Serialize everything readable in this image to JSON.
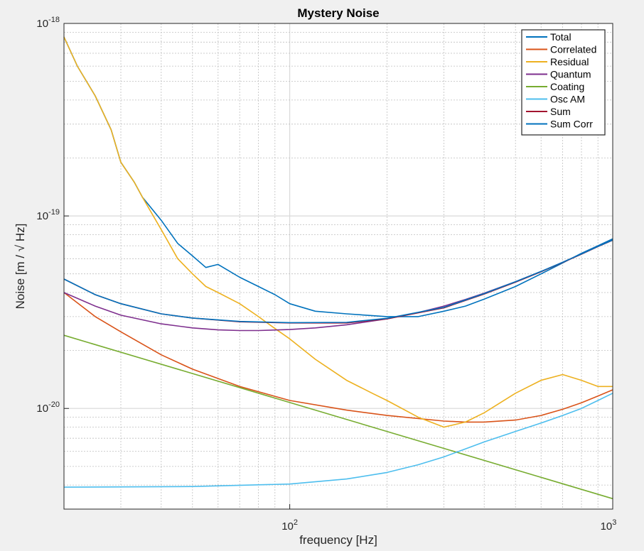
{
  "chart_data": {
    "type": "line",
    "title": "Mystery Noise",
    "xlabel": "frequency [Hz]",
    "ylabel": "Noise [m / √ Hz]",
    "xscale": "log",
    "yscale": "log",
    "xlim": [
      20,
      1000
    ],
    "ylim": [
      3e-21,
      1e-18
    ],
    "grid": true,
    "legend_position": "top-right",
    "x_ticks": [
      {
        "value": 100,
        "base": "10",
        "exp": "2"
      },
      {
        "value": 1000,
        "base": "10",
        "exp": "3"
      }
    ],
    "y_ticks": [
      {
        "value": 1e-20,
        "base": "10",
        "exp": "-20"
      },
      {
        "value": 1e-19,
        "base": "10",
        "exp": "-19"
      },
      {
        "value": 1e-18,
        "base": "10",
        "exp": "-18"
      }
    ],
    "series": [
      {
        "name": "Total",
        "color": "#0072bd",
        "x": [
          20,
          22,
          25,
          28,
          30,
          33,
          35,
          40,
          45,
          50,
          55,
          60,
          70,
          80,
          90,
          100,
          120,
          150,
          200,
          250,
          300,
          350,
          400,
          500,
          600,
          700,
          800,
          900,
          1000
        ],
        "y": [
          8.5e-19,
          6e-19,
          4.2e-19,
          2.8e-19,
          1.9e-19,
          1.5e-19,
          1.25e-19,
          9.5e-20,
          7.2e-20,
          6.2e-20,
          5.4e-20,
          5.6e-20,
          4.8e-20,
          4.3e-20,
          3.9e-20,
          3.5e-20,
          3.2e-20,
          3.1e-20,
          3e-20,
          3e-20,
          3.2e-20,
          3.4e-20,
          3.7e-20,
          4.3e-20,
          5e-20,
          5.7e-20,
          6.4e-20,
          7e-20,
          7.6e-20
        ]
      },
      {
        "name": "Correlated",
        "color": "#d95319",
        "x": [
          20,
          25,
          30,
          40,
          50,
          70,
          100,
          150,
          200,
          300,
          350,
          400,
          500,
          600,
          700,
          800,
          900,
          1000
        ],
        "y": [
          4e-20,
          3e-20,
          2.5e-20,
          1.9e-20,
          1.6e-20,
          1.3e-20,
          1.1e-20,
          9.8e-21,
          9.2e-21,
          8.6e-21,
          8.5e-21,
          8.5e-21,
          8.7e-21,
          9.2e-21,
          9.9e-21,
          1.07e-20,
          1.16e-20,
          1.25e-20
        ]
      },
      {
        "name": "Residual",
        "color": "#edb120",
        "x": [
          20,
          22,
          25,
          28,
          30,
          33,
          35,
          40,
          45,
          50,
          55,
          60,
          70,
          80,
          90,
          100,
          120,
          150,
          180,
          200,
          250,
          300,
          350,
          400,
          500,
          600,
          700,
          800,
          900,
          1000
        ],
        "y": [
          8.5e-19,
          6e-19,
          4.2e-19,
          2.8e-19,
          1.9e-19,
          1.5e-19,
          1.25e-19,
          8.5e-20,
          6e-20,
          5e-20,
          4.3e-20,
          4e-20,
          3.5e-20,
          3e-20,
          2.6e-20,
          2.3e-20,
          1.8e-20,
          1.4e-20,
          1.2e-20,
          1.1e-20,
          9e-21,
          8e-21,
          8.5e-21,
          9.5e-21,
          1.2e-20,
          1.4e-20,
          1.5e-20,
          1.4e-20,
          1.3e-20,
          1.3e-20
        ]
      },
      {
        "name": "Quantum",
        "color": "#7e2f8e",
        "x": [
          20,
          25,
          30,
          40,
          50,
          60,
          70,
          80,
          100,
          120,
          150,
          200,
          250,
          300,
          350,
          400,
          500,
          600,
          700,
          800,
          900,
          1000
        ],
        "y": [
          4e-20,
          3.4e-20,
          3.05e-20,
          2.75e-20,
          2.62e-20,
          2.56e-20,
          2.54e-20,
          2.54e-20,
          2.57e-20,
          2.62e-20,
          2.72e-20,
          2.92e-20,
          3.15e-20,
          3.4e-20,
          3.68e-20,
          3.97e-20,
          4.55e-20,
          5.15e-20,
          5.75e-20,
          6.35e-20,
          6.95e-20,
          7.5e-20
        ]
      },
      {
        "name": "Coating",
        "color": "#77ac30",
        "x": [
          20,
          1000
        ],
        "y": [
          2.4e-20,
          3.4e-21
        ]
      },
      {
        "name": "Osc AM",
        "color": "#4dbeee",
        "x": [
          20,
          50,
          100,
          150,
          200,
          250,
          300,
          400,
          500,
          600,
          700,
          800,
          900,
          1000
        ],
        "y": [
          3.9e-21,
          3.93e-21,
          4.05e-21,
          4.3e-21,
          4.65e-21,
          5.1e-21,
          5.6e-21,
          6.7e-21,
          7.6e-21,
          8.4e-21,
          9.2e-21,
          1e-20,
          1.1e-20,
          1.2e-20
        ]
      },
      {
        "name": "Sum",
        "color": "#a2142f",
        "x": [
          20,
          25,
          30,
          40,
          50,
          70,
          100,
          150,
          200,
          300,
          400,
          500,
          600,
          700,
          800,
          900,
          1000
        ],
        "y": [
          4.7e-20,
          3.9e-20,
          3.5e-20,
          3.1e-20,
          2.95e-20,
          2.82e-20,
          2.78e-20,
          2.78e-20,
          2.92e-20,
          3.33e-20,
          3.93e-20,
          4.53e-20,
          5.13e-20,
          5.73e-20,
          6.33e-20,
          6.93e-20,
          7.48e-20
        ]
      },
      {
        "name": "Sum Corr",
        "color": "#0072bd",
        "x": [
          20,
          25,
          30,
          40,
          50,
          70,
          100,
          150,
          200,
          300,
          400,
          500,
          600,
          700,
          800,
          900,
          1000
        ],
        "y": [
          4.7e-20,
          3.9e-20,
          3.5e-20,
          3.1e-20,
          2.95e-20,
          2.83e-20,
          2.79e-20,
          2.8e-20,
          2.94e-20,
          3.35e-20,
          3.95e-20,
          4.55e-20,
          5.15e-20,
          5.75e-20,
          6.35e-20,
          6.95e-20,
          7.5e-20
        ]
      }
    ]
  }
}
